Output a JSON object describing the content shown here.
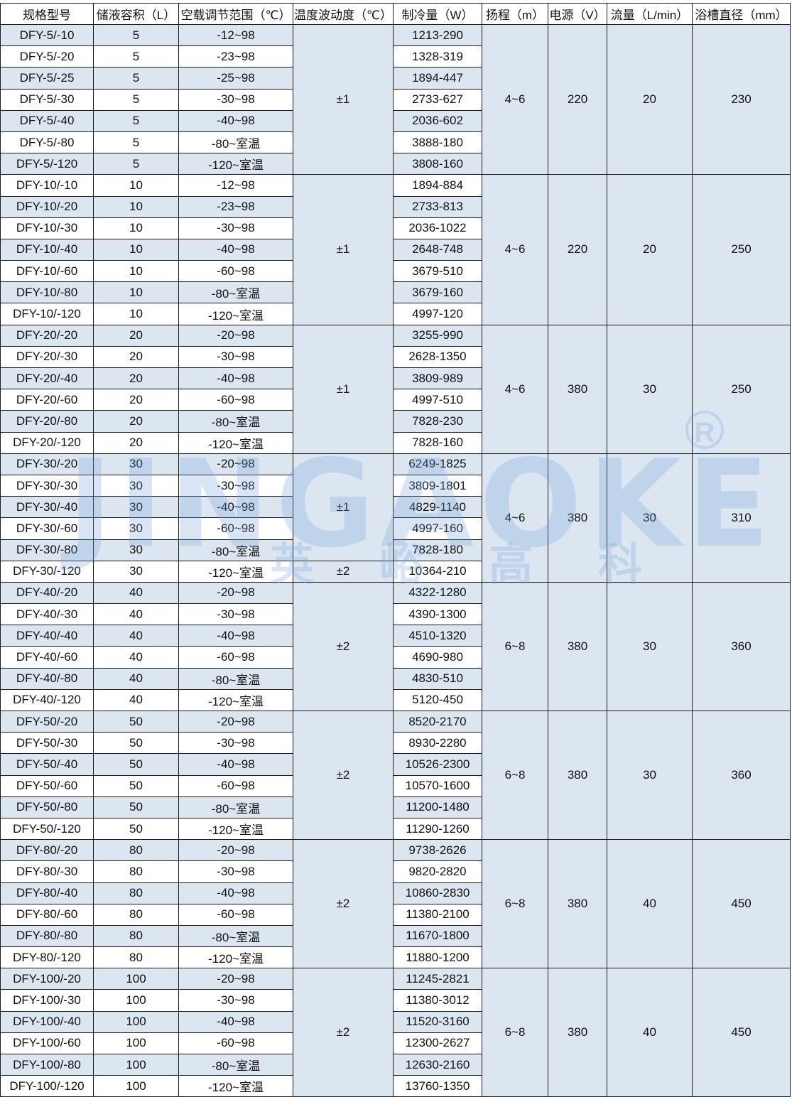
{
  "headers": [
    "规格型号",
    "储液容积（L）",
    "空载调节范围（℃）",
    "温度波动度（℃）",
    "制冷量（W）",
    "扬程（m）",
    "电源（V）",
    "流量（L/min）",
    "浴槽直径（mm）"
  ],
  "colors": {
    "row_band": "#dce6f1",
    "border": "#1a1a1a"
  },
  "watermark": {
    "brand": "JINGAOKE",
    "chinese": "英峪高科",
    "registered": "R"
  },
  "groups": [
    {
      "stability": [
        {
          "value": "±1",
          "rows": 7
        }
      ],
      "lift": "4~6",
      "power": "220",
      "flow": "20",
      "diameter": "230",
      "rows": [
        [
          "DFY-5/-10",
          "5",
          "-12~98",
          "1213-290"
        ],
        [
          "DFY-5/-20",
          "5",
          "-23~98",
          "1328-319"
        ],
        [
          "DFY-5/-25",
          "5",
          "-25~98",
          "1894-447"
        ],
        [
          "DFY-5/-30",
          "5",
          "-30~98",
          "2733-627"
        ],
        [
          "DFY-5/-40",
          "5",
          "-40~98",
          "2036-602"
        ],
        [
          "DFY-5/-80",
          "5",
          "-80~室温",
          "3888-180"
        ],
        [
          "DFY-5/-120",
          "5",
          "-120~室温",
          "3808-160"
        ]
      ]
    },
    {
      "stability": [
        {
          "value": "±1",
          "rows": 7
        }
      ],
      "lift": "4~6",
      "power": "220",
      "flow": "20",
      "diameter": "250",
      "rows": [
        [
          "DFY-10/-10",
          "10",
          "-12~98",
          "1894-884"
        ],
        [
          "DFY-10/-20",
          "10",
          "-23~98",
          "2733-813"
        ],
        [
          "DFY-10/-30",
          "10",
          "-30~98",
          "2036-1022"
        ],
        [
          "DFY-10/-40",
          "10",
          "-40~98",
          "2648-748"
        ],
        [
          "DFY-10/-60",
          "10",
          "-60~98",
          "3679-510"
        ],
        [
          "DFY-10/-80",
          "10",
          "-80~室温",
          "3679-160"
        ],
        [
          "DFY-10/-120",
          "10",
          "-120~室温",
          "4997-120"
        ]
      ]
    },
    {
      "stability": [
        {
          "value": "±1",
          "rows": 6
        }
      ],
      "lift": "4~6",
      "power": "380",
      "flow": "30",
      "diameter": "250",
      "rows": [
        [
          "DFY-20/-20",
          "20",
          "-20~98",
          "3255-990"
        ],
        [
          "DFY-20/-30",
          "20",
          "-30~98",
          "2628-1350"
        ],
        [
          "DFY-20/-40",
          "20",
          "-40~98",
          "3809-989"
        ],
        [
          "DFY-20/-60",
          "20",
          "-60~98",
          "4997-510"
        ],
        [
          "DFY-20/-80",
          "20",
          "-80~室温",
          "7828-230"
        ],
        [
          "DFY-20/-120",
          "20",
          "-120~室温",
          "7828-160"
        ]
      ]
    },
    {
      "stability": [
        {
          "value": "±1",
          "rows": 5
        },
        {
          "value": "±2",
          "rows": 1
        }
      ],
      "lift": "4~6",
      "power": "380",
      "flow": "30",
      "diameter": "310",
      "rows": [
        [
          "DFY-30/-20",
          "30",
          "-20~98",
          "6249-1825"
        ],
        [
          "DFY-30/-30",
          "30",
          "-30~98",
          "3809-1801"
        ],
        [
          "DFY-30/-40",
          "30",
          "-40~98",
          "4829-1140"
        ],
        [
          "DFY-30/-60",
          "30",
          "-60~98",
          "4997-160"
        ],
        [
          "DFY-30/-80",
          "30",
          "-80~室温",
          "7828-180"
        ],
        [
          "DFY-30/-120",
          "30",
          "-120~室温",
          "10364-210"
        ]
      ]
    },
    {
      "stability": [
        {
          "value": "±2",
          "rows": 6
        }
      ],
      "lift": "6~8",
      "power": "380",
      "flow": "30",
      "diameter": "360",
      "rows": [
        [
          "DFY-40/-20",
          "40",
          "-20~98",
          "4322-1280"
        ],
        [
          "DFY-40/-30",
          "40",
          "-30~98",
          "4390-1300"
        ],
        [
          "DFY-40/-40",
          "40",
          "-40~98",
          "4510-1320"
        ],
        [
          "DFY-40/-60",
          "40",
          "-60~98",
          "4690-980"
        ],
        [
          "DFY-40/-80",
          "40",
          "-80~室温",
          "4830-510"
        ],
        [
          "DFY-40/-120",
          "40",
          "-120~室温",
          "5120-450"
        ]
      ]
    },
    {
      "stability": [
        {
          "value": "±2",
          "rows": 6
        }
      ],
      "lift": "6~8",
      "power": "380",
      "flow": "30",
      "diameter": "360",
      "rows": [
        [
          "DFY-50/-20",
          "50",
          "-20~98",
          "8520-2170"
        ],
        [
          "DFY-50/-30",
          "50",
          "-30~98",
          "8930-2280"
        ],
        [
          "DFY-50/-40",
          "50",
          "-40~98",
          "10526-2300"
        ],
        [
          "DFY-50/-60",
          "50",
          "-60~98",
          "10570-1600"
        ],
        [
          "DFY-50/-80",
          "50",
          "-80~室温",
          "11200-1480"
        ],
        [
          "DFY-50/-120",
          "50",
          "-120~室温",
          "11290-1260"
        ]
      ]
    },
    {
      "stability": [
        {
          "value": "±2",
          "rows": 6
        }
      ],
      "lift": "6~8",
      "power": "380",
      "flow": "40",
      "diameter": "450",
      "rows": [
        [
          "DFY-80/-20",
          "80",
          "-20~98",
          "9738-2626"
        ],
        [
          "DFY-80/-30",
          "80",
          "-30~98",
          "9820-2820"
        ],
        [
          "DFY-80/-40",
          "80",
          "-40~98",
          "10860-2830"
        ],
        [
          "DFY-80/-60",
          "80",
          "-60~98",
          "11380-2100"
        ],
        [
          "DFY-80/-80",
          "80",
          "-80~室温",
          "11670-1800"
        ],
        [
          "DFY-80/-120",
          "80",
          "-120~室温",
          "11880-1200"
        ]
      ]
    },
    {
      "stability": [
        {
          "value": "±2",
          "rows": 6
        }
      ],
      "lift": "6~8",
      "power": "380",
      "flow": "40",
      "diameter": "450",
      "rows": [
        [
          "DFY-100/-20",
          "100",
          "-20~98",
          "11245-2821"
        ],
        [
          "DFY-100/-30",
          "100",
          "-30~98",
          "11380-3012"
        ],
        [
          "DFY-100/-40",
          "100",
          "-40~98",
          "11520-3160"
        ],
        [
          "DFY-100/-60",
          "100",
          "-60~98",
          "12300-2627"
        ],
        [
          "DFY-100/-80",
          "100",
          "-80~室温",
          "12630-2160"
        ],
        [
          "DFY-100/-120",
          "100",
          "-120~室温",
          "13760-1350"
        ]
      ]
    }
  ]
}
